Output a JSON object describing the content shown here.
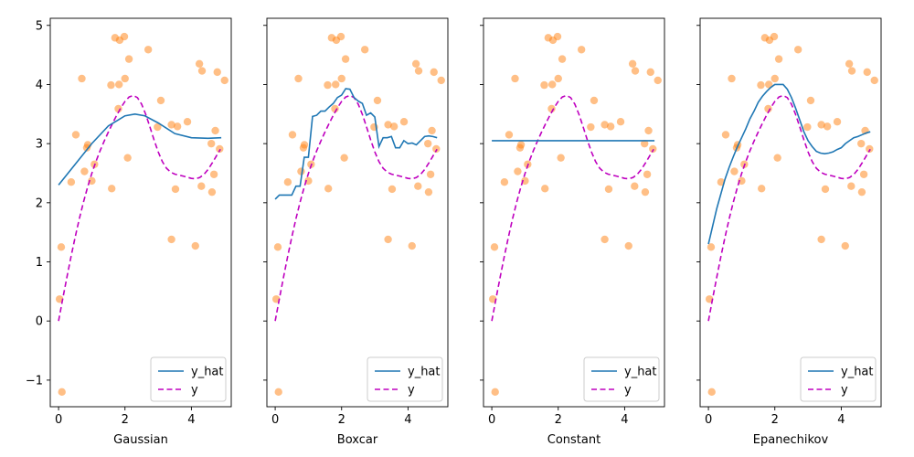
{
  "chart_data": {
    "type": "scatter",
    "xlim": [
      -0.25,
      5.2
    ],
    "ylim": [
      -1.45,
      5.12
    ],
    "x_ticks": [
      0,
      2,
      4
    ],
    "y_ticks": [
      -1,
      0,
      1,
      2,
      3,
      4,
      5
    ],
    "colors": {
      "points": "#ff7f0e",
      "y_hat": "#1f77b4",
      "y": "#bf00bf"
    },
    "legend": {
      "placement": "lower-right",
      "entries": [
        "y_hat",
        "y"
      ]
    },
    "points": [
      [
        0.03,
        0.37
      ],
      [
        0.08,
        1.25
      ],
      [
        0.1,
        -1.2
      ],
      [
        0.38,
        2.35
      ],
      [
        0.52,
        3.15
      ],
      [
        0.7,
        4.1
      ],
      [
        0.78,
        2.53
      ],
      [
        0.85,
        2.93
      ],
      [
        0.88,
        2.98
      ],
      [
        1.0,
        2.37
      ],
      [
        1.08,
        2.65
      ],
      [
        1.58,
        3.99
      ],
      [
        1.6,
        2.24
      ],
      [
        1.7,
        4.79
      ],
      [
        1.8,
        3.59
      ],
      [
        1.82,
        4.0
      ],
      [
        1.84,
        4.75
      ],
      [
        1.98,
        4.81
      ],
      [
        2.0,
        4.1
      ],
      [
        2.08,
        2.76
      ],
      [
        2.12,
        4.43
      ],
      [
        2.7,
        4.59
      ],
      [
        2.98,
        3.28
      ],
      [
        3.08,
        3.73
      ],
      [
        3.4,
        1.38
      ],
      [
        3.4,
        3.32
      ],
      [
        3.52,
        2.23
      ],
      [
        3.58,
        3.29
      ],
      [
        3.88,
        3.37
      ],
      [
        4.12,
        1.27
      ],
      [
        4.24,
        4.35
      ],
      [
        4.3,
        2.28
      ],
      [
        4.32,
        4.23
      ],
      [
        4.6,
        3.0
      ],
      [
        4.62,
        2.18
      ],
      [
        4.68,
        2.48
      ],
      [
        4.72,
        3.22
      ],
      [
        4.78,
        4.21
      ],
      [
        4.85,
        2.91
      ],
      [
        5.0,
        4.07
      ]
    ],
    "true_curve": {
      "name": "y",
      "x": [
        0,
        0.125,
        0.25,
        0.375,
        0.5,
        0.625,
        0.75,
        0.875,
        1.0,
        1.125,
        1.25,
        1.375,
        1.5,
        1.625,
        1.75,
        1.875,
        2.0,
        2.125,
        2.25,
        2.375,
        2.5,
        2.625,
        2.75,
        2.875,
        3.0,
        3.125,
        3.25,
        3.375,
        3.5,
        3.625,
        3.75,
        3.875,
        4.0,
        4.125,
        4.25,
        4.375,
        4.5,
        4.625,
        4.75,
        4.875
      ],
      "y": [
        0.0,
        0.374,
        0.738,
        1.089,
        1.42,
        1.729,
        2.011,
        2.266,
        2.494,
        2.697,
        2.879,
        3.044,
        3.197,
        3.342,
        3.479,
        3.606,
        3.714,
        3.789,
        3.815,
        3.778,
        3.668,
        3.495,
        3.284,
        3.064,
        2.861,
        2.696,
        2.583,
        2.517,
        2.484,
        2.467,
        2.452,
        2.432,
        2.412,
        2.406,
        2.426,
        2.478,
        2.562,
        2.67,
        2.789,
        2.905
      ]
    },
    "subplots": [
      {
        "xlabel": "Gaussian",
        "y_hat": {
          "name": "y_hat",
          "x": [
            0,
            0.5,
            1.0,
            1.5,
            2.0,
            2.3,
            2.6,
            3.0,
            3.5,
            4.0,
            4.5,
            4.9
          ],
          "y": [
            2.3,
            2.65,
            3.0,
            3.3,
            3.47,
            3.5,
            3.47,
            3.35,
            3.17,
            3.1,
            3.09,
            3.1
          ]
        }
      },
      {
        "xlabel": "Boxcar",
        "y_hat": {
          "name": "y_hat",
          "x": [
            0,
            0.125,
            0.25,
            0.375,
            0.5,
            0.625,
            0.75,
            0.875,
            1.0,
            1.125,
            1.25,
            1.375,
            1.5,
            1.625,
            1.75,
            1.875,
            2.0,
            2.125,
            2.25,
            2.375,
            2.5,
            2.625,
            2.75,
            2.875,
            3.0,
            3.125,
            3.25,
            3.375,
            3.5,
            3.625,
            3.75,
            3.875,
            4.0,
            4.125,
            4.25,
            4.375,
            4.5,
            4.625,
            4.75,
            4.875
          ],
          "y": [
            2.06,
            2.13,
            2.13,
            2.13,
            2.13,
            2.28,
            2.28,
            2.77,
            2.77,
            3.46,
            3.48,
            3.55,
            3.55,
            3.62,
            3.68,
            3.78,
            3.82,
            3.93,
            3.92,
            3.78,
            3.72,
            3.68,
            3.48,
            3.52,
            3.45,
            2.95,
            3.1,
            3.1,
            3.12,
            2.93,
            2.93,
            3.05,
            3.0,
            3.01,
            2.98,
            3.05,
            3.12,
            3.13,
            3.12,
            3.1
          ]
        }
      },
      {
        "xlabel": "Constant",
        "y_hat": {
          "name": "y_hat",
          "x": [
            0,
            4.9
          ],
          "y": [
            3.05,
            3.05
          ]
        }
      },
      {
        "xlabel": "Epanechikov",
        "y_hat": {
          "name": "y_hat",
          "x": [
            0,
            0.125,
            0.25,
            0.375,
            0.5,
            0.625,
            0.75,
            0.875,
            1.0,
            1.125,
            1.25,
            1.375,
            1.5,
            1.625,
            1.75,
            1.875,
            2.0,
            2.125,
            2.25,
            2.375,
            2.5,
            2.625,
            2.75,
            2.875,
            3.0,
            3.125,
            3.25,
            3.375,
            3.5,
            3.625,
            3.75,
            3.875,
            4.0,
            4.125,
            4.25,
            4.375,
            4.5,
            4.625,
            4.75,
            4.875
          ],
          "y": [
            1.3,
            1.6,
            1.9,
            2.15,
            2.4,
            2.6,
            2.78,
            2.95,
            3.1,
            3.25,
            3.42,
            3.55,
            3.7,
            3.8,
            3.88,
            3.95,
            4.0,
            4.0,
            4.0,
            3.92,
            3.78,
            3.6,
            3.4,
            3.2,
            3.05,
            2.95,
            2.87,
            2.84,
            2.83,
            2.84,
            2.86,
            2.9,
            2.93,
            3.0,
            3.05,
            3.1,
            3.12,
            3.15,
            3.18,
            3.2
          ]
        }
      }
    ]
  }
}
